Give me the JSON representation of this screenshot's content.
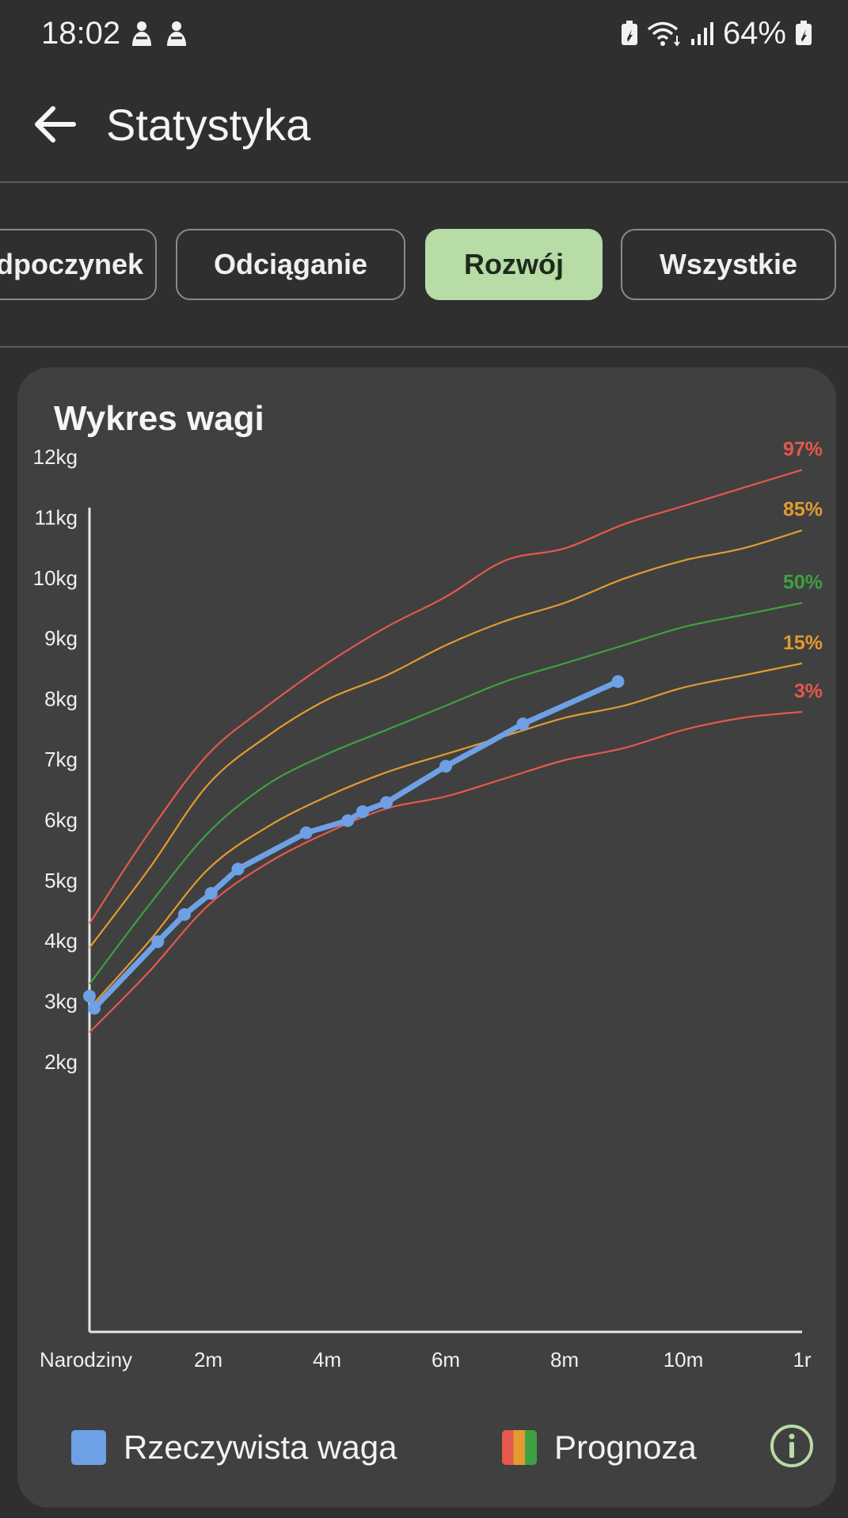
{
  "status_bar": {
    "time": "18:02",
    "battery": "64%"
  },
  "app_bar": {
    "title": "Statystyka"
  },
  "tabs": [
    {
      "label": "Odpoczynek",
      "active": false
    },
    {
      "label": "Odciąganie",
      "active": false
    },
    {
      "label": "Rozwój",
      "active": true
    },
    {
      "label": "Wszystkie",
      "active": false
    }
  ],
  "card": {
    "title": "Wykres wagi"
  },
  "legend": {
    "actual_label": "Rzeczywista waga",
    "forecast_label": "Prognoza",
    "actual_color": "#6ea0e6",
    "forecast_colors": [
      "#e5584e",
      "#e39a30",
      "#3da13f"
    ]
  },
  "chart_data": {
    "type": "line",
    "title": "Wykres wagi",
    "x_unit": "months",
    "xlim": [
      0,
      12
    ],
    "ylim": [
      1.6,
      12.4
    ],
    "x_ticks": [
      {
        "value": 0,
        "label": "Narodziny"
      },
      {
        "value": 2,
        "label": "2m"
      },
      {
        "value": 4,
        "label": "4m"
      },
      {
        "value": 6,
        "label": "6m"
      },
      {
        "value": 8,
        "label": "8m"
      },
      {
        "value": 10,
        "label": "10m"
      },
      {
        "value": 12,
        "label": "1r"
      }
    ],
    "y_ticks": [
      {
        "value": 2,
        "label": "2kg"
      },
      {
        "value": 3,
        "label": "3kg"
      },
      {
        "value": 4,
        "label": "4kg"
      },
      {
        "value": 5,
        "label": "5kg"
      },
      {
        "value": 6,
        "label": "6kg"
      },
      {
        "value": 7,
        "label": "7kg"
      },
      {
        "value": 8,
        "label": "8kg"
      },
      {
        "value": 9,
        "label": "9kg"
      },
      {
        "value": 10,
        "label": "10kg"
      },
      {
        "value": 11,
        "label": "11kg"
      },
      {
        "value": 12,
        "label": "12kg"
      }
    ],
    "percentiles": [
      {
        "label": "97%",
        "color": "#e5584e",
        "x": [
          0,
          1,
          2,
          3,
          4,
          5,
          6,
          7,
          8,
          9,
          10,
          11,
          12
        ],
        "y": [
          4.3,
          5.8,
          7.1,
          7.9,
          8.6,
          9.2,
          9.7,
          10.3,
          10.5,
          10.9,
          11.2,
          11.5,
          11.8
        ]
      },
      {
        "label": "85%",
        "color": "#e39a30",
        "x": [
          0,
          1,
          2,
          3,
          4,
          5,
          6,
          7,
          8,
          9,
          10,
          11,
          12
        ],
        "y": [
          3.9,
          5.2,
          6.6,
          7.4,
          8.0,
          8.4,
          8.9,
          9.3,
          9.6,
          10.0,
          10.3,
          10.5,
          10.8
        ]
      },
      {
        "label": "50%",
        "color": "#3da13f",
        "x": [
          0,
          1,
          2,
          3,
          4,
          5,
          6,
          7,
          8,
          9,
          10,
          11,
          12
        ],
        "y": [
          3.3,
          4.6,
          5.8,
          6.6,
          7.1,
          7.5,
          7.9,
          8.3,
          8.6,
          8.9,
          9.2,
          9.4,
          9.6
        ]
      },
      {
        "label": "15%",
        "color": "#e39a30",
        "x": [
          0,
          1,
          2,
          3,
          4,
          5,
          6,
          7,
          8,
          9,
          10,
          11,
          12
        ],
        "y": [
          2.9,
          4.0,
          5.2,
          5.9,
          6.4,
          6.8,
          7.1,
          7.4,
          7.7,
          7.9,
          8.2,
          8.4,
          8.6
        ]
      },
      {
        "label": "3%",
        "color": "#e5584e",
        "x": [
          0,
          1,
          2,
          3,
          4,
          5,
          6,
          7,
          8,
          9,
          10,
          11,
          12
        ],
        "y": [
          2.5,
          3.5,
          4.6,
          5.3,
          5.8,
          6.2,
          6.4,
          6.7,
          7.0,
          7.2,
          7.5,
          7.7,
          7.8
        ]
      }
    ],
    "actual": {
      "color": "#6ea0e6",
      "x": [
        0,
        0.08,
        1.15,
        1.6,
        2.05,
        2.5,
        3.65,
        4.35,
        4.6,
        5.0,
        6.0,
        7.3,
        8.9
      ],
      "y": [
        3.1,
        2.9,
        4.0,
        4.45,
        4.8,
        5.2,
        5.8,
        6.0,
        6.15,
        6.3,
        6.9,
        7.6,
        8.3
      ]
    }
  }
}
